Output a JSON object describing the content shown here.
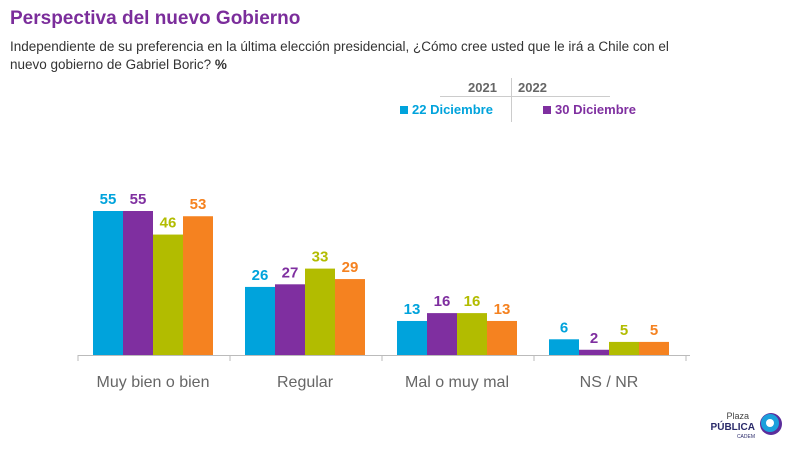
{
  "title": "Perspectiva del nuevo Gobierno",
  "subtitle": "Independiente de su preferencia en la última elección presidencial, ¿Cómo cree usted que le irá a Chile con el nuevo gobierno de Gabriel Boric?",
  "subtitle_unit": "%",
  "legend": {
    "year1": "2021",
    "year2": "2022",
    "item1": "22 Diciembre",
    "item2": "30 Diciembre"
  },
  "logo": {
    "line1": "Plaza",
    "line2": "PÚBLICA",
    "line3": "CADEM"
  },
  "chart_data": {
    "type": "bar",
    "categories": [
      "Muy bien o bien",
      "Regular",
      "Mal o muy mal",
      "NS / NR"
    ],
    "series": [
      {
        "name": "22 Diciembre",
        "color": "#00a3dc",
        "values": [
          55,
          26,
          13,
          6
        ]
      },
      {
        "name": "30 Diciembre",
        "color": "#7f2fa0",
        "values": [
          55,
          27,
          16,
          2
        ]
      },
      {
        "color": "#b2bc00",
        "values": [
          46,
          33,
          16,
          5
        ]
      },
      {
        "color": "#f58220",
        "values": [
          53,
          29,
          13,
          5
        ]
      }
    ],
    "ylim": [
      0,
      60
    ],
    "grid": false,
    "legend_position": "top-right"
  }
}
